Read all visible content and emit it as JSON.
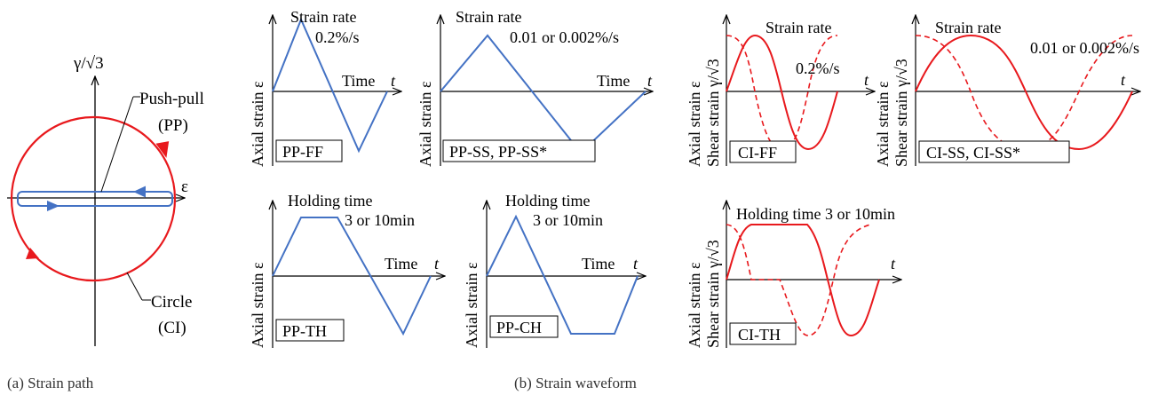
{
  "colors": {
    "blue": "#4472c4",
    "red": "#e8191d",
    "axis": "#000000"
  },
  "panel_a": {
    "y_axis": "γ/√3",
    "x_axis": "ε",
    "pp_label_1": "Push-pull",
    "pp_label_2": "(PP)",
    "ci_label_1": "Circle",
    "ci_label_2": "(CI)",
    "caption": "(a) Strain path"
  },
  "panel_b": {
    "caption": "(b) Strain waveform",
    "y_axial": "Axial strain ε",
    "y_shear": "Shear strain γ/√3",
    "time": "Time",
    "t": "t",
    "pp_ff": {
      "label": "PP-FF",
      "rate_title": "Strain rate",
      "rate_value": "0.2%/s"
    },
    "pp_ss": {
      "label": "PP-SS, PP-SS*",
      "rate_title": "Strain rate",
      "rate_value": "0.01 or 0.002%/s"
    },
    "ci_ff": {
      "label": "CI-FF",
      "rate_title": "Strain rate",
      "rate_value": "0.2%/s"
    },
    "ci_ss": {
      "label": "CI-SS, CI-SS*",
      "rate_title": "Strain rate",
      "rate_value": "0.01 or 0.002%/s"
    },
    "pp_th": {
      "label": "PP-TH",
      "hold_title": "Holding time",
      "hold_value": "3 or 10min"
    },
    "pp_ch": {
      "label": "PP-CH",
      "hold_title": "Holding time",
      "hold_value": "3 or 10min"
    },
    "ci_th": {
      "label": "CI-TH",
      "hold_text": "Holding time 3 or 10min"
    }
  }
}
